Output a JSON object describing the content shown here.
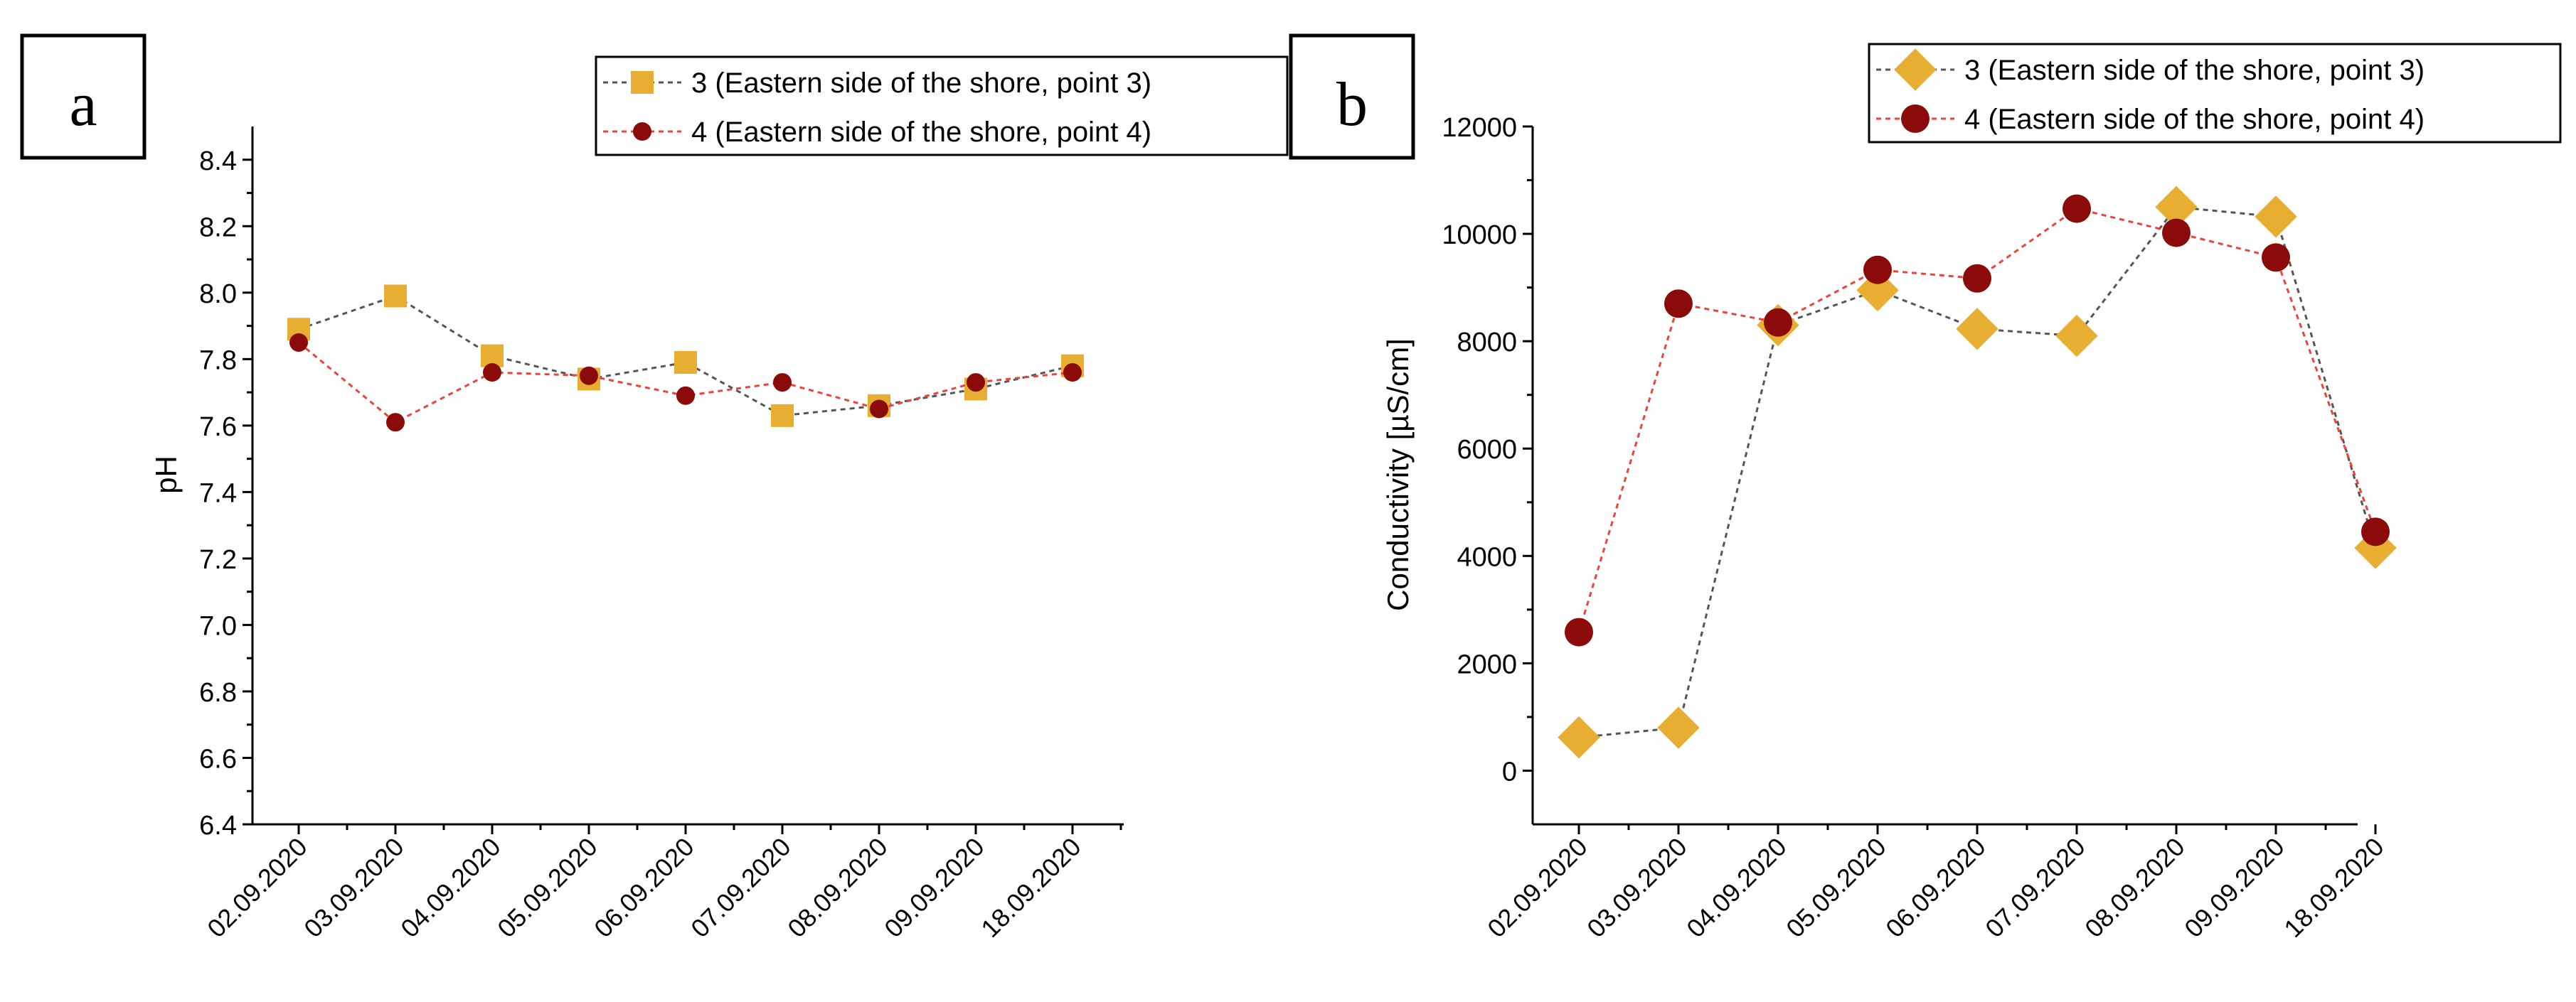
{
  "chart_data": [
    {
      "type": "line",
      "panel_label": "a",
      "title": "",
      "xlabel": "",
      "ylabel": "pH",
      "categories": [
        "02.09.2020",
        "03.09.2020",
        "04.09.2020",
        "05.09.2020",
        "06.09.2020",
        "07.09.2020",
        "08.09.2020",
        "09.09.2020",
        "18.09.2020"
      ],
      "ylim": [
        6.4,
        8.5
      ],
      "yticks": [
        6.4,
        6.6,
        6.8,
        7.0,
        7.2,
        7.4,
        7.6,
        7.8,
        8.0,
        8.2,
        8.4
      ],
      "ytick_labels": [
        "6.4",
        "6.6",
        "6.8",
        "7.0",
        "7.2",
        "7.4",
        "7.6",
        "7.8",
        "8.0",
        "8.2",
        "8.4"
      ],
      "grid": false,
      "legend_position": "top-right",
      "series": [
        {
          "name": "3 (Eastern side of the shore, point 3)",
          "marker": "square",
          "color": "#E8AE32",
          "line_color": "#555555",
          "values": [
            7.89,
            7.99,
            7.81,
            7.74,
            7.79,
            7.63,
            7.66,
            7.71,
            7.78
          ]
        },
        {
          "name": "4 (Eastern side of the shore, point 4)",
          "marker": "circle",
          "color": "#8B0A0A",
          "line_color": "#E8453C",
          "values": [
            7.85,
            7.61,
            7.76,
            7.75,
            7.69,
            7.73,
            7.65,
            7.73,
            7.76
          ]
        }
      ]
    },
    {
      "type": "line",
      "panel_label": "b",
      "title": "",
      "xlabel": "",
      "ylabel": "Conductivity [µS/cm]",
      "categories": [
        "02.09.2020",
        "03.09.2020",
        "04.09.2020",
        "05.09.2020",
        "06.09.2020",
        "07.09.2020",
        "08.09.2020",
        "09.09.2020",
        "18.09.2020"
      ],
      "ylim": [
        -1000,
        12000
      ],
      "yticks": [
        0,
        2000,
        4000,
        6000,
        8000,
        10000,
        12000
      ],
      "ytick_labels": [
        "0",
        "2000",
        "4000",
        "6000",
        "8000",
        "10000",
        "12000"
      ],
      "grid": false,
      "legend_position": "top-right",
      "series": [
        {
          "name": "3 (Eastern side of the shore, point 3)",
          "marker": "diamond",
          "color": "#E8AE32",
          "line_color": "#555555",
          "values": [
            620,
            800,
            8300,
            8950,
            8230,
            8100,
            10500,
            10320,
            4150
          ]
        },
        {
          "name": "4 (Eastern side of the shore, point 4)",
          "marker": "circle",
          "color": "#8B0A0A",
          "line_color": "#E8453C",
          "values": [
            2580,
            8700,
            8350,
            9330,
            9170,
            10470,
            10020,
            9560,
            4450
          ]
        }
      ]
    }
  ]
}
